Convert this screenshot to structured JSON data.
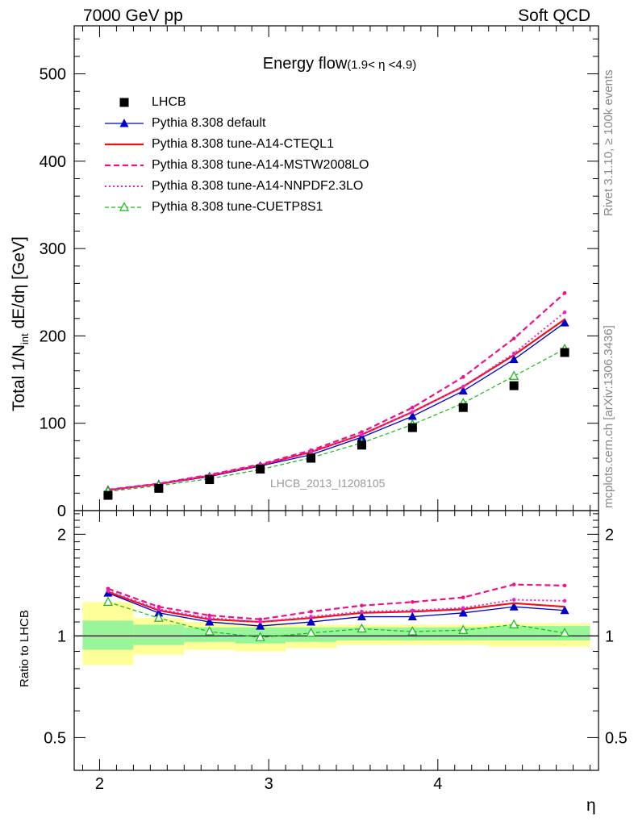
{
  "header": {
    "left": "7000 GeV pp",
    "right": "Soft QCD"
  },
  "side_labels": {
    "rivet": "Rivet 3.1.10, ≥ 100k events",
    "mcplots": "mcplots.cern.ch [arXiv:1306.3436]"
  },
  "watermark": "LHCB_2013_I1208105",
  "plot_title": {
    "main": "Energy flow",
    "sub": "(1.9< η <4.9)"
  },
  "axes": {
    "main_ylabel_pre": "Total 1/N",
    "main_ylabel_sub": "int",
    "main_ylabel_post": " dE/dη [GeV]",
    "ratio_ylabel": "Ratio to LHCB",
    "xlabel": "η",
    "main_yticks": [
      "0",
      "100",
      "200",
      "300",
      "400",
      "500"
    ],
    "ratio_yticks": [
      "0.5",
      "1",
      "2"
    ],
    "xticks": [
      "2",
      "3",
      "4"
    ]
  },
  "colors": {
    "data": "#000000",
    "default": "#0000cc",
    "cteql1": "#ee1111",
    "mstw": "#ee1188",
    "nnpdf": "#ee22cc",
    "cuetp8s1": "#11bb11",
    "band_inner": "#99f599",
    "band_outer": "#ffff99"
  },
  "legend": [
    {
      "key": "data",
      "label": "LHCB"
    },
    {
      "key": "default",
      "label": "Pythia 8.308 default"
    },
    {
      "key": "cteql1",
      "label": "Pythia 8.308 tune-A14-CTEQL1"
    },
    {
      "key": "mstw",
      "label": "Pythia 8.308 tune-A14-MSTW2008LO"
    },
    {
      "key": "nnpdf",
      "label": "Pythia 8.308 tune-A14-NNPDF2.3LO"
    },
    {
      "key": "cuetp8s1",
      "label": "Pythia 8.308 tune-CUETP8S1"
    }
  ],
  "chart_data": {
    "type": "line",
    "xlim": [
      1.85,
      4.95
    ],
    "ylim": [
      0,
      555
    ],
    "ratio_ylim": [
      0.4,
      2.35
    ],
    "ratio_log": true,
    "x": [
      2.05,
      2.35,
      2.65,
      2.95,
      3.25,
      3.55,
      3.85,
      4.15,
      4.45,
      4.75
    ],
    "bin_edges": [
      1.9,
      2.2,
      2.5,
      2.8,
      3.1,
      3.4,
      3.7,
      4.0,
      4.3,
      4.6,
      4.9
    ],
    "data": {
      "name": "LHCB",
      "values": [
        17.5,
        25.5,
        35.5,
        47.5,
        60,
        75,
        95,
        118,
        143,
        181
      ]
    },
    "band_inner": {
      "lo": [
        0.91,
        0.94,
        0.96,
        0.95,
        0.96,
        0.97,
        0.97,
        0.97,
        0.97,
        0.97
      ],
      "hi": [
        1.11,
        1.08,
        1.06,
        1.06,
        1.06,
        1.06,
        1.06,
        1.06,
        1.07,
        1.07
      ]
    },
    "band_outer": {
      "lo": [
        0.82,
        0.88,
        0.91,
        0.9,
        0.92,
        0.94,
        0.94,
        0.94,
        0.93,
        0.93
      ],
      "hi": [
        1.26,
        1.13,
        1.1,
        1.09,
        1.08,
        1.08,
        1.08,
        1.08,
        1.09,
        1.09
      ]
    },
    "series": [
      {
        "key": "default",
        "name": "Pythia 8.308 default",
        "style": "solid",
        "marker": "triangle",
        "values": [
          23.5,
          30,
          39,
          51,
          64,
          84,
          108,
          137,
          173,
          215
        ]
      },
      {
        "key": "cteql1",
        "name": "Pythia 8.308 tune-A14-CTEQL1",
        "style": "solid-thick",
        "marker": "none",
        "values": [
          23.5,
          30.5,
          40,
          52,
          67,
          87,
          113,
          142,
          178,
          219
        ]
      },
      {
        "key": "mstw",
        "name": "Pythia 8.308 tune-A14-MSTW2008LO",
        "style": "dashed",
        "marker": "dot",
        "values": [
          24,
          31,
          41,
          53,
          69,
          90,
          118,
          153,
          197,
          249
        ]
      },
      {
        "key": "nnpdf",
        "name": "Pythia 8.308 tune-A14-NNPDF2.3LO",
        "style": "dotted",
        "marker": "dot",
        "values": [
          23.5,
          30.5,
          40,
          52,
          67,
          87,
          113,
          142,
          180,
          227
        ]
      },
      {
        "key": "cuetp8s1",
        "name": "Pythia 8.308 tune-CUETP8S1",
        "style": "dashed-thin",
        "marker": "open-triangle",
        "values": [
          22,
          28.5,
          36.5,
          47,
          60.5,
          77.5,
          98.5,
          123,
          154,
          185
        ]
      }
    ],
    "ratio": {
      "default": [
        1.34,
        1.17,
        1.1,
        1.07,
        1.1,
        1.14,
        1.14,
        1.17,
        1.22,
        1.19
      ],
      "cteql1": [
        1.35,
        1.19,
        1.12,
        1.1,
        1.13,
        1.17,
        1.18,
        1.2,
        1.25,
        1.22
      ],
      "mstw": [
        1.38,
        1.22,
        1.15,
        1.12,
        1.18,
        1.23,
        1.26,
        1.3,
        1.42,
        1.41
      ],
      "nnpdf": [
        1.36,
        1.2,
        1.13,
        1.1,
        1.14,
        1.18,
        1.19,
        1.21,
        1.28,
        1.27
      ],
      "cuetp8s1": [
        1.26,
        1.13,
        1.03,
        0.99,
        1.02,
        1.05,
        1.03,
        1.04,
        1.08,
        1.02
      ]
    }
  }
}
